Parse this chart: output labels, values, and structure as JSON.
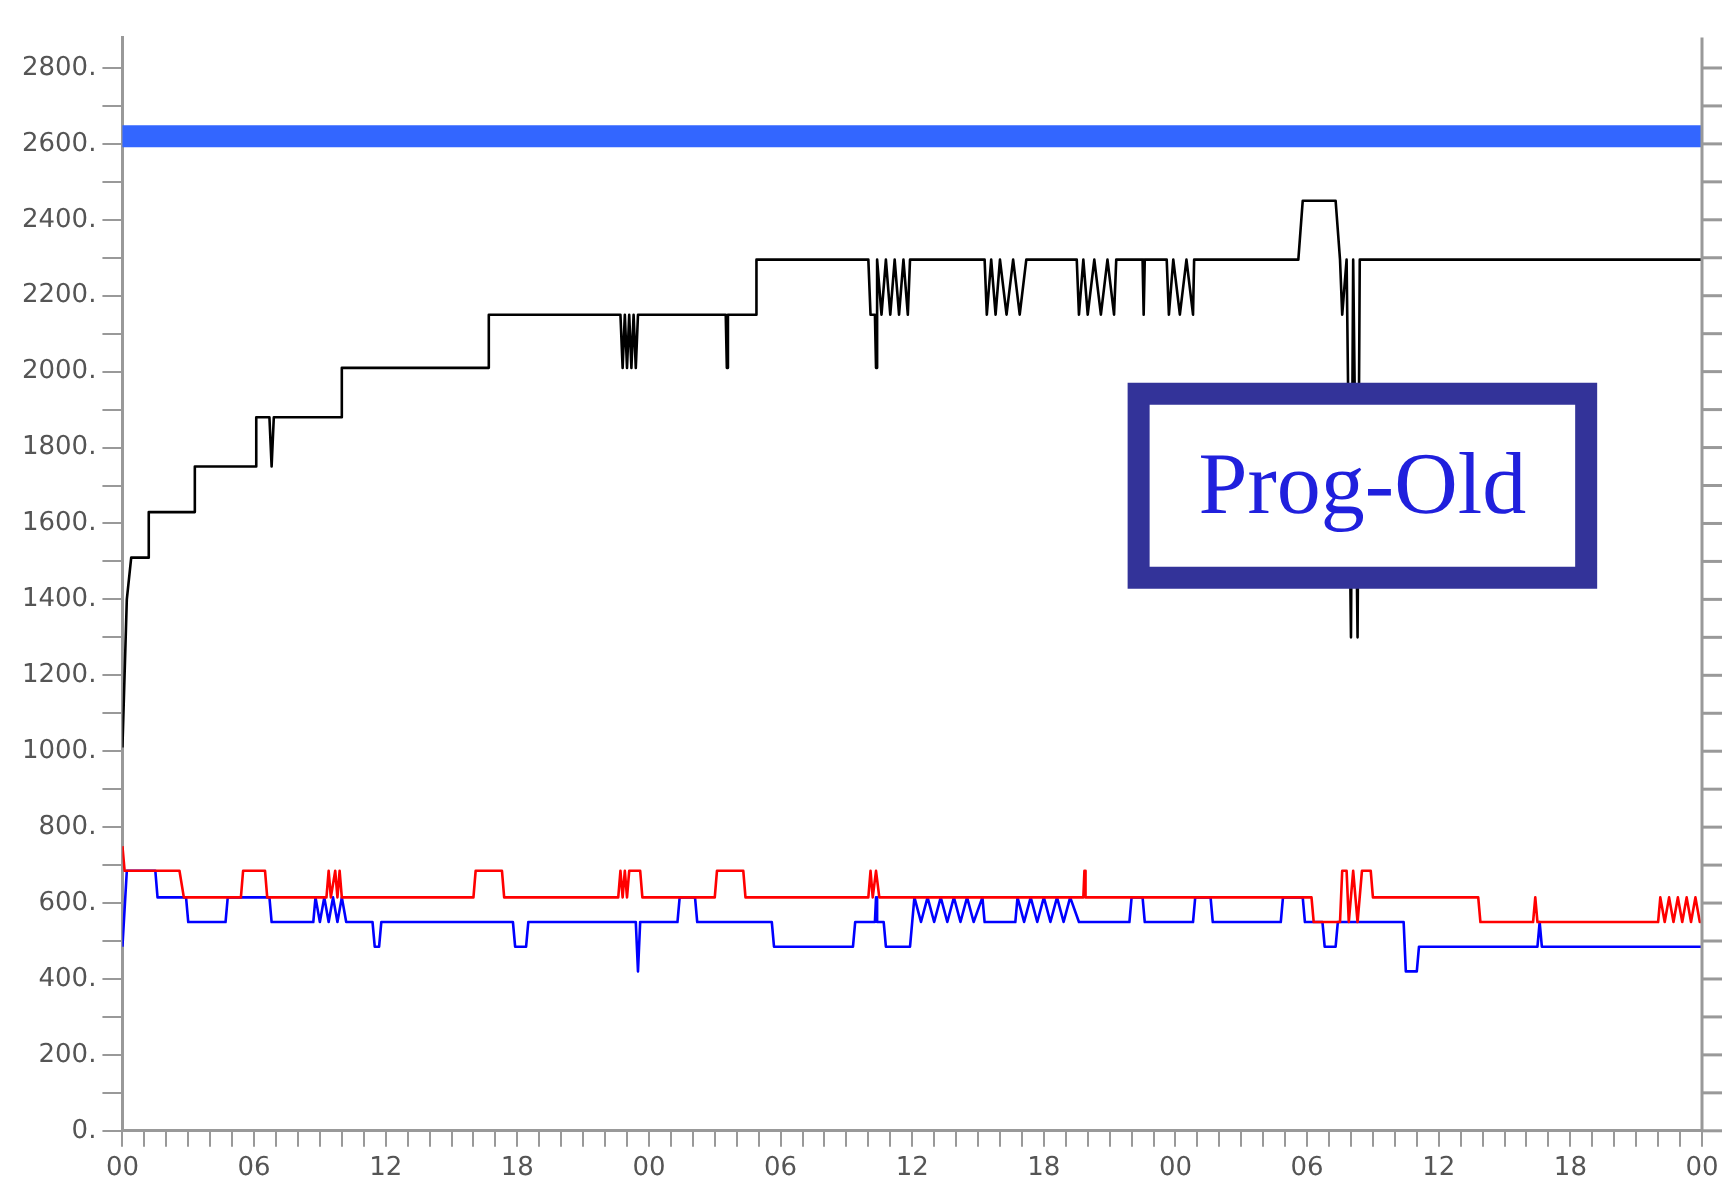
{
  "chart_data": {
    "type": "line",
    "ylim": [
      0,
      2880
    ],
    "yticks": [
      {
        "value": 0,
        "label": "0."
      },
      {
        "value": 100,
        "label": null
      },
      {
        "value": 200,
        "label": "200."
      },
      {
        "value": 300,
        "label": null
      },
      {
        "value": 400,
        "label": "400."
      },
      {
        "value": 500,
        "label": null
      },
      {
        "value": 600,
        "label": "600."
      },
      {
        "value": 700,
        "label": null
      },
      {
        "value": 800,
        "label": "800."
      },
      {
        "value": 900,
        "label": null
      },
      {
        "value": 1000,
        "label": "1000."
      },
      {
        "value": 1100,
        "label": null
      },
      {
        "value": 1200,
        "label": "1200."
      },
      {
        "value": 1300,
        "label": null
      },
      {
        "value": 1400,
        "label": "1400."
      },
      {
        "value": 1500,
        "label": null
      },
      {
        "value": 1600,
        "label": "1600."
      },
      {
        "value": 1700,
        "label": null
      },
      {
        "value": 1800,
        "label": "1800."
      },
      {
        "value": 1900,
        "label": null
      },
      {
        "value": 2000,
        "label": "2000."
      },
      {
        "value": 2100,
        "label": null
      },
      {
        "value": 2200,
        "label": "2200."
      },
      {
        "value": 2300,
        "label": null
      },
      {
        "value": 2400,
        "label": "2400."
      },
      {
        "value": 2500,
        "label": null
      },
      {
        "value": 2600,
        "label": "2600."
      },
      {
        "value": 2700,
        "label": null
      },
      {
        "value": 2800,
        "label": "2800."
      }
    ],
    "xlim": [
      0,
      72
    ],
    "xticks": [
      {
        "value": 0,
        "label": "00"
      },
      {
        "value": 1,
        "label": null
      },
      {
        "value": 2,
        "label": null
      },
      {
        "value": 3,
        "label": null
      },
      {
        "value": 4,
        "label": null
      },
      {
        "value": 5,
        "label": null
      },
      {
        "value": 6,
        "label": "06"
      },
      {
        "value": 7,
        "label": null
      },
      {
        "value": 8,
        "label": null
      },
      {
        "value": 9,
        "label": null
      },
      {
        "value": 10,
        "label": null
      },
      {
        "value": 11,
        "label": null
      },
      {
        "value": 12,
        "label": "12"
      },
      {
        "value": 13,
        "label": null
      },
      {
        "value": 14,
        "label": null
      },
      {
        "value": 15,
        "label": null
      },
      {
        "value": 16,
        "label": null
      },
      {
        "value": 17,
        "label": null
      },
      {
        "value": 18,
        "label": "18"
      },
      {
        "value": 19,
        "label": null
      },
      {
        "value": 20,
        "label": null
      },
      {
        "value": 21,
        "label": null
      },
      {
        "value": 22,
        "label": null
      },
      {
        "value": 23,
        "label": null
      },
      {
        "value": 24,
        "label": "00"
      },
      {
        "value": 25,
        "label": null
      },
      {
        "value": 26,
        "label": null
      },
      {
        "value": 27,
        "label": null
      },
      {
        "value": 28,
        "label": null
      },
      {
        "value": 29,
        "label": null
      },
      {
        "value": 30,
        "label": "06"
      },
      {
        "value": 31,
        "label": null
      },
      {
        "value": 32,
        "label": null
      },
      {
        "value": 33,
        "label": null
      },
      {
        "value": 34,
        "label": null
      },
      {
        "value": 35,
        "label": null
      },
      {
        "value": 36,
        "label": "12"
      },
      {
        "value": 37,
        "label": null
      },
      {
        "value": 38,
        "label": null
      },
      {
        "value": 39,
        "label": null
      },
      {
        "value": 40,
        "label": null
      },
      {
        "value": 41,
        "label": null
      },
      {
        "value": 42,
        "label": "18"
      },
      {
        "value": 43,
        "label": null
      },
      {
        "value": 44,
        "label": null
      },
      {
        "value": 45,
        "label": null
      },
      {
        "value": 46,
        "label": null
      },
      {
        "value": 47,
        "label": null
      },
      {
        "value": 48,
        "label": "00"
      },
      {
        "value": 49,
        "label": null
      },
      {
        "value": 50,
        "label": null
      },
      {
        "value": 51,
        "label": null
      },
      {
        "value": 52,
        "label": null
      },
      {
        "value": 53,
        "label": null
      },
      {
        "value": 54,
        "label": "06"
      },
      {
        "value": 55,
        "label": null
      },
      {
        "value": 56,
        "label": null
      },
      {
        "value": 57,
        "label": null
      },
      {
        "value": 58,
        "label": null
      },
      {
        "value": 59,
        "label": null
      },
      {
        "value": 60,
        "label": "12"
      },
      {
        "value": 61,
        "label": null
      },
      {
        "value": 62,
        "label": null
      },
      {
        "value": 63,
        "label": null
      },
      {
        "value": 64,
        "label": null
      },
      {
        "value": 65,
        "label": null
      },
      {
        "value": 66,
        "label": "18"
      },
      {
        "value": 67,
        "label": null
      },
      {
        "value": 68,
        "label": null
      },
      {
        "value": 69,
        "label": null
      },
      {
        "value": 70,
        "label": null
      },
      {
        "value": 71,
        "label": null
      },
      {
        "value": 72,
        "label": "00"
      }
    ],
    "ref_lines": [
      {
        "axis": "y",
        "value": 2620,
        "color": "#3366ff"
      }
    ],
    "annotations": [
      "Prog-Old"
    ],
    "series": [
      {
        "color": "#000000",
        "x": [
          0,
          0.2,
          0.4,
          1.2,
          1.2,
          3.3,
          3.3,
          6.1,
          6.1,
          6.7,
          6.8,
          6.9,
          10,
          10,
          16.7,
          16.7,
          22.7,
          22.8,
          22.9,
          23,
          23.1,
          23.2,
          23.3,
          23.4,
          23.5,
          27.5,
          27.55,
          27.6,
          28.9,
          28.9,
          34,
          34.1,
          34.3,
          34.35,
          34.4,
          34.6,
          34.8,
          35,
          35.2,
          35.4,
          35.6,
          35.8,
          35.9,
          39.3,
          39.4,
          39.6,
          39.8,
          40,
          40.3,
          40.6,
          40.9,
          41.2,
          43.5,
          43.6,
          43.8,
          44,
          44.3,
          44.6,
          44.9,
          45.2,
          45.3,
          46.5,
          46.55,
          46.6,
          47.6,
          47.7,
          47.9,
          48.2,
          48.5,
          48.8,
          48.85,
          53.6,
          53.8,
          55.3,
          55.5,
          55.6,
          55.8,
          56,
          56.1,
          56.3,
          56.4,
          72
        ],
        "values": [
          1010,
          1400,
          1510,
          1510,
          1630,
          1630,
          1750,
          1750,
          1880,
          1880,
          1750,
          1880,
          1880,
          2010,
          2010,
          2150,
          2150,
          2010,
          2150,
          2010,
          2150,
          2010,
          2150,
          2010,
          2150,
          2150,
          2010,
          2150,
          2150,
          2295,
          2295,
          2150,
          2150,
          2010,
          2295,
          2150,
          2295,
          2150,
          2295,
          2150,
          2295,
          2150,
          2295,
          2295,
          2150,
          2295,
          2150,
          2295,
          2150,
          2295,
          2150,
          2295,
          2295,
          2150,
          2295,
          2150,
          2295,
          2150,
          2295,
          2150,
          2295,
          2295,
          2150,
          2295,
          2295,
          2150,
          2295,
          2150,
          2295,
          2150,
          2295,
          2295,
          2450,
          2450,
          2295,
          2150,
          2295,
          1300,
          2295,
          1300,
          2295,
          2295
        ]
      },
      {
        "color": "#ff0000",
        "x": [
          0,
          0.1,
          2.6,
          2.8,
          5.4,
          5.5,
          6.5,
          6.6,
          9.3,
          9.4,
          9.5,
          9.7,
          9.8,
          9.9,
          10,
          16,
          16.1,
          17.3,
          17.4,
          22.6,
          22.7,
          22.8,
          22.9,
          23,
          23.1,
          23.6,
          23.7,
          27,
          27.1,
          28.3,
          28.4,
          34,
          34.1,
          34.2,
          34.35,
          34.5,
          43.8,
          43.85,
          43.9,
          54.2,
          54.3,
          55.5,
          55.6,
          55.8,
          55.9,
          56.1,
          56.3,
          56.5,
          56.9,
          57,
          61.8,
          61.9,
          64.3,
          64.4,
          64.5,
          70,
          70.1,
          70.3,
          70.5,
          70.7,
          70.9,
          71.1,
          71.3,
          71.5,
          71.7,
          71.9,
          72
        ],
        "values": [
          750,
          685,
          685,
          615,
          615,
          685,
          685,
          615,
          615,
          685,
          615,
          685,
          615,
          685,
          615,
          615,
          685,
          685,
          615,
          615,
          685,
          615,
          685,
          615,
          685,
          685,
          615,
          615,
          685,
          685,
          615,
          615,
          685,
          615,
          685,
          615,
          615,
          685,
          615,
          615,
          550,
          550,
          685,
          685,
          550,
          685,
          550,
          685,
          685,
          615,
          615,
          550,
          550,
          615,
          550,
          550,
          615,
          550,
          615,
          550,
          615,
          550,
          615,
          550,
          615,
          550,
          550
        ]
      },
      {
        "color": "#0000ff",
        "x": [
          0,
          0.2,
          1.5,
          1.6,
          2.9,
          3,
          4.7,
          4.8,
          6.7,
          6.8,
          8.7,
          8.8,
          9,
          9.2,
          9.4,
          9.6,
          9.8,
          10,
          10.2,
          11.4,
          11.5,
          11.7,
          11.8,
          17.8,
          17.9,
          18.4,
          18.5,
          23.4,
          23.5,
          23.6,
          25.3,
          25.4,
          26.1,
          26.2,
          29.6,
          29.7,
          33.3,
          33.4,
          34.3,
          34.35,
          34.4,
          34.7,
          34.8,
          35.9,
          36.1,
          36.4,
          36.7,
          37,
          37.3,
          37.6,
          37.9,
          38.2,
          38.5,
          38.8,
          39.2,
          39.3,
          40.7,
          40.8,
          41.1,
          41.4,
          41.7,
          42,
          42.3,
          42.6,
          42.9,
          43.2,
          43.6,
          45.9,
          46,
          46.5,
          46.6,
          48.8,
          48.9,
          49.6,
          49.7,
          52.8,
          52.9,
          53.8,
          53.9,
          54.7,
          54.8,
          55.3,
          55.4,
          58.4,
          58.5,
          59,
          59.1,
          64.5,
          64.6,
          64.7,
          72
        ],
        "values": [
          485,
          685,
          685,
          615,
          615,
          550,
          550,
          615,
          615,
          550,
          550,
          615,
          550,
          615,
          550,
          615,
          550,
          615,
          550,
          550,
          485,
          485,
          550,
          550,
          485,
          485,
          550,
          550,
          420,
          550,
          550,
          615,
          615,
          550,
          550,
          485,
          485,
          550,
          550,
          615,
          550,
          550,
          485,
          485,
          615,
          550,
          615,
          550,
          615,
          550,
          615,
          550,
          615,
          550,
          615,
          550,
          550,
          615,
          550,
          615,
          550,
          615,
          550,
          615,
          550,
          615,
          550,
          550,
          615,
          615,
          550,
          550,
          615,
          615,
          550,
          550,
          615,
          615,
          550,
          550,
          485,
          485,
          550,
          550,
          420,
          420,
          485,
          485,
          550,
          485,
          485
        ]
      }
    ]
  }
}
